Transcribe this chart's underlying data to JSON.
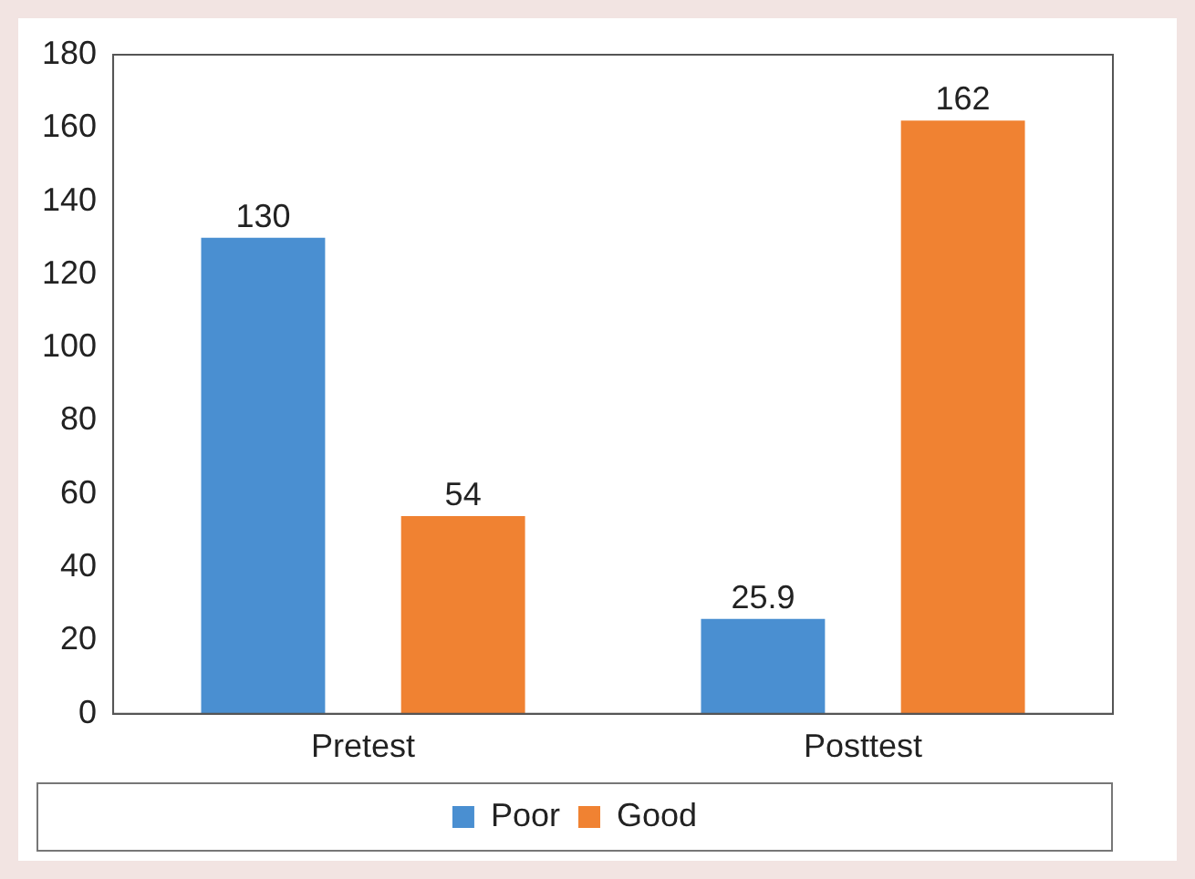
{
  "chart_data": {
    "type": "bar",
    "categories": [
      "Pretest",
      "Posttest"
    ],
    "series": [
      {
        "name": "Poor",
        "color": "#4a8fd1",
        "values": [
          130,
          25.9
        ]
      },
      {
        "name": "Good",
        "color": "#f08232",
        "values": [
          54,
          162
        ]
      }
    ],
    "ylim": [
      0,
      180
    ],
    "yticks": [
      0,
      20,
      40,
      60,
      80,
      100,
      120,
      140,
      160,
      180
    ],
    "grid": false,
    "legend": "bottom",
    "data_labels": true
  }
}
